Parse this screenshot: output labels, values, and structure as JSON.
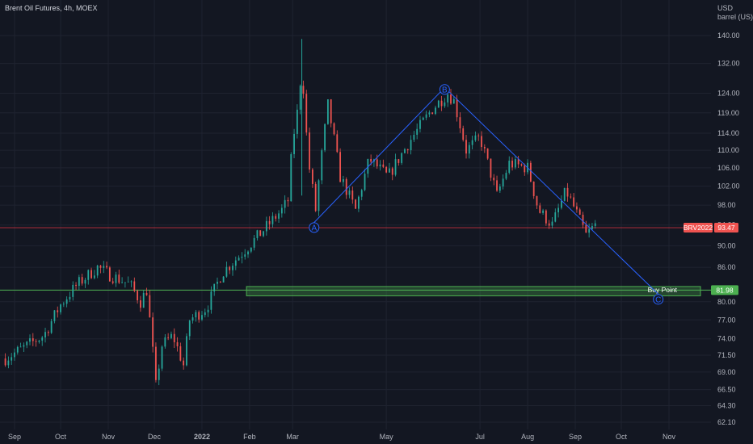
{
  "header": {
    "symbol_title": "Brent Oil Futures, 4h, MOEX",
    "currency": "USD",
    "unit": "barrel (US)"
  },
  "colors": {
    "background": "#131722",
    "up": "#26a69a",
    "down": "#ef5350",
    "trendline": "#2962ff",
    "buy_zone": "#4caf50",
    "price_line": "#f23645"
  },
  "chart_data": {
    "type": "candlestick",
    "title": "Brent Oil Futures, 4h, MOEX",
    "y_scale": "log",
    "ylim": [
      61,
      148
    ],
    "y_ticks": [
      "140.00",
      "132.00",
      "124.00",
      "119.00",
      "114.00",
      "110.00",
      "106.00",
      "102.00",
      "98.00",
      "94.00",
      "90.00",
      "86.00",
      "82.00",
      "80.00",
      "77.00",
      "74.00",
      "71.50",
      "69.00",
      "66.50",
      "64.30",
      "62.10"
    ],
    "x_ticks": [
      "Sep",
      "Oct",
      "Nov",
      "Dec",
      "2022",
      "Feb",
      "Mar",
      "May",
      "Jul",
      "Aug",
      "Sep",
      "Oct",
      "Nov"
    ],
    "price_path": [
      [
        "2021-08-26",
        71.0
      ],
      [
        "2021-09-06",
        72.5
      ],
      [
        "2021-09-20",
        74.5
      ],
      [
        "2021-10-01",
        79.5
      ],
      [
        "2021-10-12",
        83.0
      ],
      [
        "2021-10-25",
        86.0
      ],
      [
        "2021-11-03",
        84.5
      ],
      [
        "2021-11-15",
        83.0
      ],
      [
        "2021-11-22",
        80.0
      ],
      [
        "2021-11-26",
        82.0
      ],
      [
        "2021-11-30",
        72.0
      ],
      [
        "2021-12-02",
        67.0
      ],
      [
        "2021-12-06",
        73.0
      ],
      [
        "2021-12-13",
        74.5
      ],
      [
        "2021-12-20",
        70.0
      ],
      [
        "2021-12-24",
        77.0
      ],
      [
        "2022-01-04",
        79.0
      ],
      [
        "2022-01-14",
        85.0
      ],
      [
        "2022-01-25",
        88.0
      ],
      [
        "2022-02-07",
        92.0
      ],
      [
        "2022-02-22",
        97.0
      ],
      [
        "2022-02-26",
        99.0
      ],
      [
        "2022-03-01",
        112.0
      ],
      [
        "2022-03-04",
        119.0
      ],
      [
        "2022-03-07",
        131.0
      ],
      [
        "2022-03-11",
        108.0
      ],
      [
        "2022-03-16",
        97.0
      ],
      [
        "2022-03-24",
        121.0
      ],
      [
        "2022-04-01",
        104.0
      ],
      [
        "2022-04-11",
        97.0
      ],
      [
        "2022-04-20",
        108.0
      ],
      [
        "2022-05-02",
        104.0
      ],
      [
        "2022-05-16",
        112.0
      ],
      [
        "2022-05-31",
        120.0
      ],
      [
        "2022-06-10",
        124.0
      ],
      [
        "2022-06-14",
        122.0
      ],
      [
        "2022-06-22",
        110.0
      ],
      [
        "2022-07-01",
        113.0
      ],
      [
        "2022-07-12",
        100.0
      ],
      [
        "2022-07-20",
        107.0
      ],
      [
        "2022-08-01",
        106.0
      ],
      [
        "2022-08-08",
        97.0
      ],
      [
        "2022-08-17",
        94.0
      ],
      [
        "2022-08-26",
        101.0
      ],
      [
        "2022-09-01",
        97.0
      ],
      [
        "2022-09-08",
        92.0
      ],
      [
        "2022-09-14",
        94.0
      ]
    ],
    "annotations": {
      "wave_points": [
        {
          "label": "A",
          "date": "2022-03-15",
          "price": 93.5
        },
        {
          "label": "B",
          "date": "2022-06-08",
          "price": 125.0
        },
        {
          "label": "C",
          "date": "2022-10-25",
          "price": 80.4
        }
      ],
      "trendline": [
        {
          "date": "2022-03-15",
          "price": 94.5
        },
        {
          "date": "2022-06-08",
          "price": 125.5
        },
        {
          "date": "2022-10-25",
          "price": 81.3
        }
      ],
      "buy_zone": {
        "low": 81.0,
        "high": 82.6,
        "start": "2022-01-30",
        "label": "Buy Point",
        "price_label": "81.98"
      },
      "horizontal_line": {
        "price": 81.98
      },
      "current_price": {
        "symbol": "BRV2022",
        "value": "93.47",
        "price": 93.47
      }
    }
  }
}
